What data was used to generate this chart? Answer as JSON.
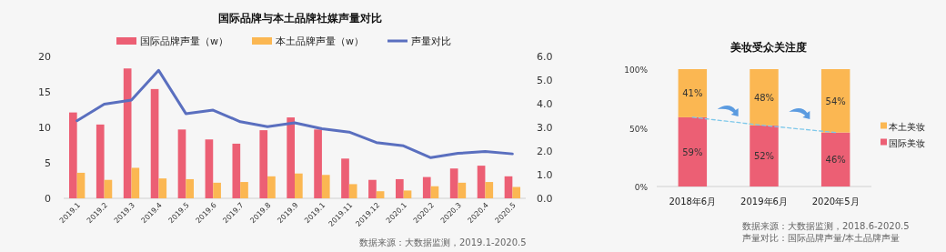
{
  "chart_data": [
    {
      "type": "bar",
      "title": "国际品牌与本土品牌社媒声量对比",
      "categories": [
        "2019.1",
        "2019.2",
        "2019.3",
        "2019.4",
        "2019.5",
        "2019.6",
        "2019.7",
        "2019.8",
        "2019.9",
        "2019.1",
        "2019.11",
        "2019.12",
        "2020.1",
        "2020.2",
        "2020.3",
        "2020.4",
        "2020.5"
      ],
      "series": [
        {
          "name": "国际品牌声量（w）",
          "color": "#ec5f74",
          "values": [
            12.1,
            10.4,
            18.3,
            15.4,
            9.7,
            8.3,
            7.7,
            9.6,
            11.4,
            9.7,
            5.6,
            2.6,
            2.7,
            3.0,
            4.2,
            4.6,
            3.1
          ]
        },
        {
          "name": "本土品牌声量（w）",
          "color": "#fbb752",
          "values": [
            3.6,
            2.6,
            4.3,
            2.8,
            2.7,
            2.2,
            2.3,
            3.1,
            3.5,
            3.3,
            2.0,
            1.0,
            1.1,
            1.7,
            2.2,
            2.3,
            1.6
          ]
        },
        {
          "name": "声量对比",
          "type": "line",
          "axis": "y2",
          "color": "#5a6fbf",
          "values": [
            3.28,
            3.98,
            4.15,
            5.41,
            3.58,
            3.73,
            3.24,
            3.03,
            3.19,
            2.94,
            2.8,
            2.36,
            2.22,
            1.72,
            1.9,
            1.98,
            1.88
          ]
        }
      ],
      "ylim": [
        0,
        20
      ],
      "yticks": [
        0,
        5,
        10,
        15,
        20
      ],
      "y2lim": [
        0,
        6
      ],
      "y2ticks": [
        {
          "value": 0,
          "label": "0.0"
        },
        {
          "value": 1,
          "label": "1.0"
        },
        {
          "value": 2,
          "label": "2.0"
        },
        {
          "value": 3,
          "label": "3.0"
        },
        {
          "value": 4,
          "label": "4.0"
        },
        {
          "value": 5,
          "label": "5.0"
        },
        {
          "value": 6,
          "label": "6.0"
        }
      ],
      "legend": "top",
      "marker": "none",
      "annotations": [
        "数据来源：大数据监测，2019.1-2020.5"
      ]
    },
    {
      "type": "bar",
      "title": "美妆受众关注度",
      "stacked": true,
      "categories": [
        "2018年6月",
        "2019年6月",
        "2020年5月"
      ],
      "series": [
        {
          "name": "国际美妆",
          "color": "#ec5f74",
          "values": [
            59,
            52,
            46
          ],
          "value_labels": [
            "59%",
            "52%",
            "46%"
          ]
        },
        {
          "name": "本土美妆",
          "color": "#fbb752",
          "values": [
            41,
            48,
            54
          ],
          "value_labels": [
            "41%",
            "48%",
            "54%"
          ]
        },
        {
          "type": "line",
          "color": "#7ec8ea",
          "line_style": "dashed",
          "values": [
            59,
            52,
            46
          ]
        }
      ],
      "ylim": [
        0,
        100
      ],
      "yticks": [
        {
          "value": 0,
          "label": "0%"
        },
        {
          "value": 50,
          "label": "50%"
        },
        {
          "value": 100,
          "label": "100%"
        }
      ],
      "legend": "right",
      "annotations": [
        "数据来源：大数据监测，2018.6-2020.5",
        "声量对比：国际品牌声量/本土品牌声量"
      ]
    }
  ]
}
